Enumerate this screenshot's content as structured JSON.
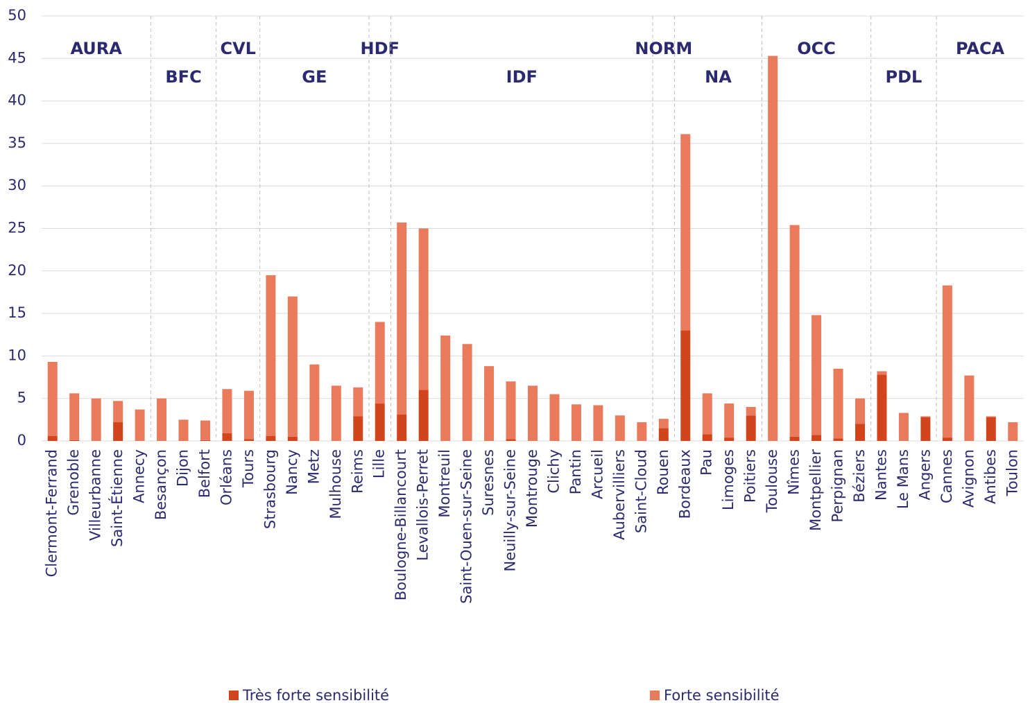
{
  "chart_data": {
    "type": "stacked_bar",
    "categories": [
      "Clermont-Ferrand",
      "Grenoble",
      "Villeurbanne",
      "Saint-Étienne",
      "Annecy",
      "Besançon",
      "Dijon",
      "Belfort",
      "Orléans",
      "Tours",
      "Strasbourg",
      "Nancy",
      "Metz",
      "Mulhouse",
      "Reims",
      "Lille",
      "Boulogne-Billancourt",
      "Levallois-Perret",
      "Montreuil",
      "Saint-Ouen-sur-Seine",
      "Suresnes",
      "Neuilly-sur-Seine",
      "Montrouge",
      "Clichy",
      "Pantin",
      "Arcueil",
      "Aubervilliers",
      "Saint-Cloud",
      "Rouen",
      "Bordeaux",
      "Pau",
      "Limoges",
      "Poitiers",
      "Toulouse",
      "Nîmes",
      "Montpellier",
      "Perpignan",
      "Béziers",
      "Nantes",
      "Le Mans",
      "Angers",
      "Cannes",
      "Avignon",
      "Antibes",
      "Toulon"
    ],
    "series": [
      {
        "name": "Très forte sensibilité",
        "color": "#d2441c",
        "values": [
          0.6,
          0.1,
          0,
          2.2,
          0,
          0,
          0,
          0.1,
          0.9,
          0.2,
          0.6,
          0.5,
          0,
          0,
          2.9,
          4.4,
          3.1,
          6.0,
          0,
          0,
          0,
          0.2,
          0,
          0,
          0,
          0,
          0,
          0,
          1.5,
          13.0,
          0.8,
          0.4,
          3.0,
          0,
          0.5,
          0.7,
          0.3,
          2.0,
          7.8,
          0,
          2.8,
          0.4,
          0,
          2.8,
          0
        ]
      },
      {
        "name": "Forte sensibilité",
        "color": "#e97b5c",
        "values": [
          8.7,
          5.5,
          5.0,
          2.5,
          3.7,
          5.0,
          2.5,
          2.3,
          5.2,
          5.7,
          18.9,
          16.5,
          9.0,
          6.5,
          3.4,
          9.6,
          22.6,
          19.0,
          12.4,
          11.4,
          8.8,
          6.8,
          6.5,
          5.5,
          4.3,
          4.2,
          3.0,
          2.2,
          1.1,
          23.1,
          4.8,
          4.0,
          1.0,
          45.3,
          24.9,
          14.1,
          8.2,
          3.0,
          0.4,
          3.3,
          0.1,
          17.9,
          7.7,
          0.1,
          2.2
        ]
      }
    ],
    "regions": [
      {
        "label": "AURA",
        "span": 5
      },
      {
        "label": "BFC",
        "span": 3
      },
      {
        "label": "CVL",
        "span": 2
      },
      {
        "label": "GE",
        "span": 5
      },
      {
        "label": "HDF",
        "span": 1
      },
      {
        "label": "IDF",
        "span": 12
      },
      {
        "label": "NORM",
        "span": 1
      },
      {
        "label": "NA",
        "span": 4
      },
      {
        "label": "OCC",
        "span": 5
      },
      {
        "label": "PDL",
        "span": 3
      },
      {
        "label": "PACA",
        "span": 4
      }
    ],
    "ylim": [
      0,
      50
    ],
    "yticks": [
      0,
      5,
      10,
      15,
      20,
      25,
      30,
      35,
      40,
      45,
      50
    ],
    "grid": true
  }
}
